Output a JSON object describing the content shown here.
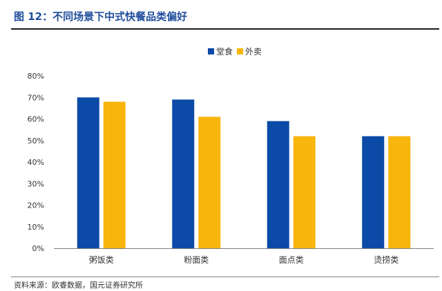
{
  "figure": {
    "title": "图 12：不同场景下中式快餐品类偏好",
    "source": "资料来源：欧睿数据，国元证券研究所"
  },
  "colors": {
    "dine_in": "#0b4aa6",
    "takeaway": "#f8b50c",
    "title": "#1f4e9c",
    "axis": "#7f7f7f",
    "text": "#333333"
  },
  "chart_data": {
    "type": "bar",
    "title": "",
    "xlabel": "",
    "ylabel": "",
    "categories": [
      "粥饭类",
      "粉面类",
      "面点类",
      "烫捞类"
    ],
    "series": [
      {
        "name": "堂食",
        "values": [
          70,
          69,
          59,
          52
        ]
      },
      {
        "name": "外卖",
        "values": [
          68,
          61,
          52,
          52
        ]
      }
    ],
    "ylim": [
      0,
      80
    ],
    "yticks": [
      0,
      10,
      20,
      30,
      40,
      50,
      60,
      70,
      80
    ],
    "ytick_labels": [
      "0%",
      "10%",
      "20%",
      "30%",
      "40%",
      "50%",
      "60%",
      "70%",
      "80%"
    ],
    "legend_position": "top-center",
    "grid": false
  }
}
